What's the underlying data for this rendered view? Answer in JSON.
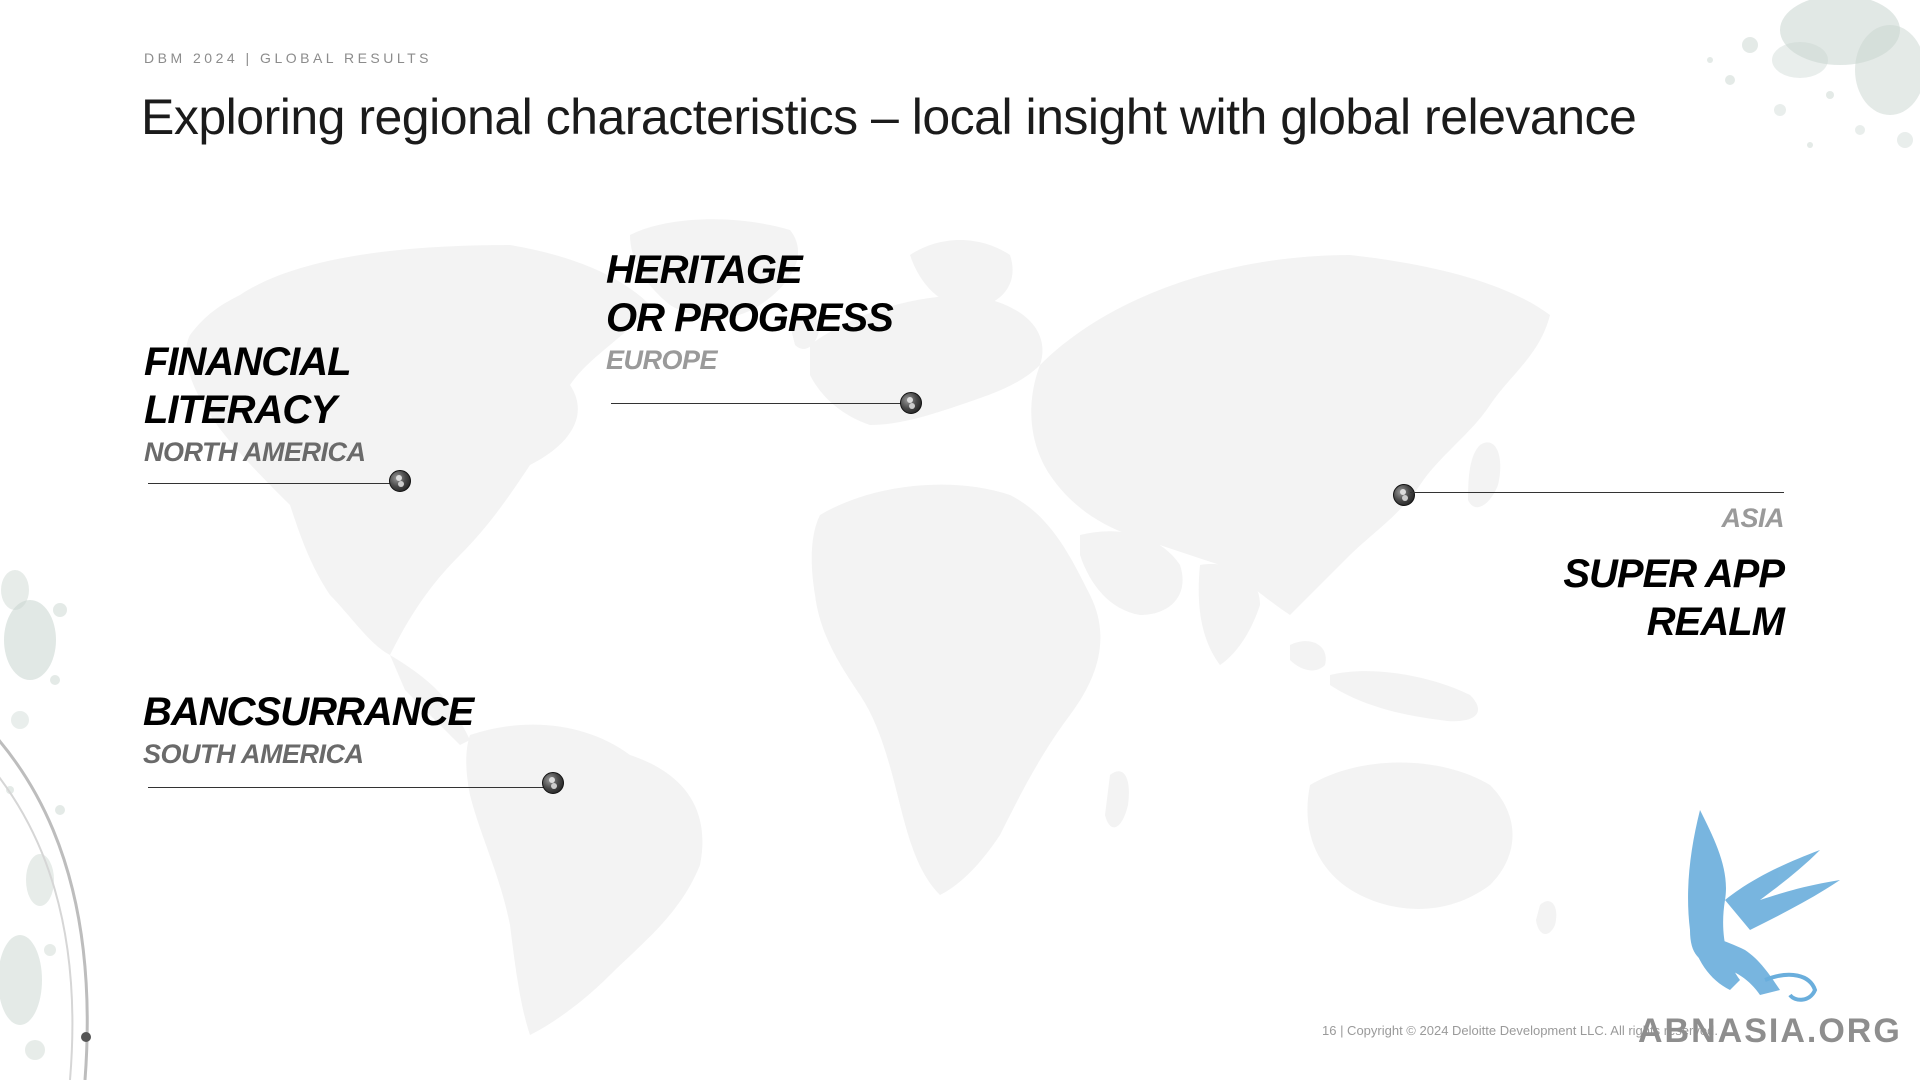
{
  "header": {
    "eyebrow": "DBM 2024 | GLOBAL RESULTS",
    "title": "Exploring regional characteristics – local insight with global relevance"
  },
  "callouts": {
    "north_america": {
      "title_line1": "FINANCIAL",
      "title_line2": "LITERACY",
      "region": "NORTH AMERICA"
    },
    "europe": {
      "title_line1": "HERITAGE",
      "title_line2": "OR PROGRESS",
      "region": "EUROPE"
    },
    "asia": {
      "region": "ASIA",
      "title_line1": "SUPER APP",
      "title_line2": "REALM"
    },
    "south_america": {
      "title_line1": "BANCSURRANCE",
      "region": "SOUTH AMERICA"
    }
  },
  "footer": {
    "text": "16 | Copyright © 2024 Deloitte Development LLC. All rights reserved."
  },
  "watermark": {
    "text": "ABNASIA.ORG"
  },
  "colors": {
    "map_land": "#f3f3f3",
    "watercolor": "#c9d5cf",
    "logo_blue": "#6aaedc",
    "title": "#000000",
    "region_dark": "#6a6a6a",
    "region_light": "#9a9a9a"
  }
}
